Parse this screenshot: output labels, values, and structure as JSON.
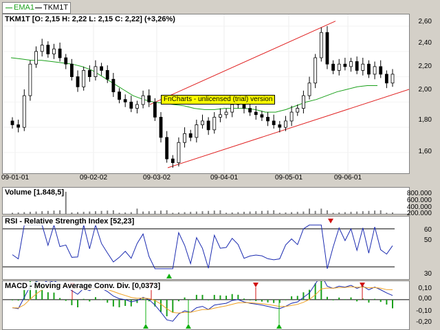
{
  "legend": {
    "items": [
      {
        "label": "EMA1",
        "color": "#1aa01a"
      },
      {
        "label": "TKM1T",
        "color": "#000000"
      }
    ]
  },
  "price_pane": {
    "title": "TKM1T [O: 2,15  H: 2,22  L: 2,15  C: 2,22] (+3,26%)",
    "y_ticks": [
      "2,60",
      "2,40",
      "2,20",
      "2,00",
      "1,80",
      "1,60"
    ],
    "x_labels": [
      "09-01-01",
      "09-02-02",
      "09-03-02",
      "09-04-01",
      "09-05-01",
      "09-06-01"
    ],
    "watermark": "FnCharts - unlicensed (trial) version"
  },
  "volume_pane": {
    "title": "Volume [1.848,5]",
    "y_ticks": [
      "800.000",
      "600.000",
      "400.000",
      "200.000"
    ]
  },
  "rsi_pane": {
    "title": "RSI - Relative Strength Index [52,23]",
    "y_ticks": [
      "60",
      "50",
      "30"
    ]
  },
  "macd_pane": {
    "title": "MACD - Moving Average Conv. Div. [0,0373]",
    "y_ticks": [
      "0,10",
      "0,00",
      "-0,10",
      "-0,20"
    ]
  },
  "colors": {
    "ema": "#1aa01a",
    "channel": "#e02020",
    "rsi_line": "#1a2ab0",
    "macd_line": "#1a2ab0",
    "signal_line": "#f0a020",
    "histogram": "#1aa01a",
    "sell_marker": "#d01010",
    "buy_marker": "#10b010"
  },
  "chart_data": {
    "type": "candlestick",
    "x_range": [
      "09-01-01",
      "09-06-25"
    ],
    "price_ylim": [
      1.48,
      2.66
    ],
    "ohlc_current": {
      "open": 2.15,
      "high": 2.22,
      "low": 2.15,
      "close": 2.22,
      "change_pct": 3.26
    },
    "close_series": [
      1.82,
      1.8,
      2.05,
      2.3,
      2.4,
      2.45,
      2.38,
      2.42,
      2.35,
      2.3,
      2.2,
      2.12,
      2.25,
      2.2,
      2.28,
      2.25,
      2.18,
      2.08,
      2.02,
      2.0,
      1.95,
      1.98,
      2.05,
      2.0,
      1.88,
      1.72,
      1.55,
      1.52,
      1.68,
      1.75,
      1.72,
      1.82,
      1.85,
      1.78,
      1.88,
      1.9,
      1.92,
      1.98,
      2.0,
      1.95,
      1.92,
      1.9,
      1.88,
      1.85,
      1.82,
      1.8,
      1.85,
      1.92,
      1.95,
      2.05,
      2.15,
      2.35,
      2.55,
      2.3,
      2.25,
      2.3,
      2.28,
      2.32,
      2.25,
      2.3,
      2.22,
      2.28,
      2.22,
      2.15,
      2.22
    ],
    "ema_series": [
      2.35,
      2.34,
      2.33,
      2.33,
      2.32,
      2.31,
      2.3,
      2.28,
      2.25,
      2.2,
      2.15,
      2.1,
      2.05,
      2.02,
      2.0,
      1.99,
      1.98,
      1.97,
      1.95,
      1.94,
      1.94,
      1.95,
      1.95,
      1.95,
      1.94,
      1.92,
      1.92,
      1.94,
      1.97,
      2.0,
      2.02,
      2.05,
      2.08,
      2.1,
      2.12,
      2.13,
      2.13
    ],
    "channel_upper": [
      [
        1.98,
        2.64
      ]
    ],
    "channel_lower": [
      [
        1.48,
        2.1
      ]
    ],
    "volume_ylim": [
      0,
      900000
    ],
    "volume_peak": 848000,
    "rsi_ylim": [
      20,
      80
    ],
    "rsi_levels": [
      70,
      30
    ],
    "rsi_last": 52.23,
    "macd_ylim": [
      -0.24,
      0.14
    ],
    "macd_last": 0.0373,
    "sell_signal_count": 5,
    "buy_signal_count": 4
  }
}
